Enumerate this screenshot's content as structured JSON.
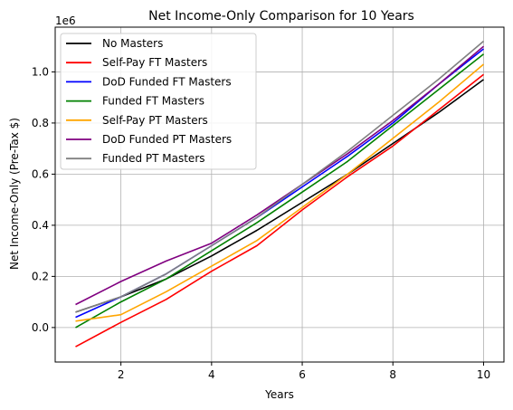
{
  "chart_data": {
    "type": "line",
    "title": "Net Income-Only Comparison for 10 Years",
    "xlabel": "Years",
    "ylabel": "Net Income-Only (Pre-Tax $)",
    "y_offset_label": "1e6",
    "xlim": [
      0.55,
      10.45
    ],
    "ylim": [
      -0.135,
      1.175
    ],
    "x_ticks": [
      2,
      4,
      6,
      8,
      10
    ],
    "x_tick_labels": [
      "2",
      "4",
      "6",
      "8",
      "10"
    ],
    "y_ticks": [
      0.0,
      0.2,
      0.4,
      0.6,
      0.8,
      1.0
    ],
    "y_tick_labels": [
      "0.0",
      "0.2",
      "0.4",
      "0.6",
      "0.8",
      "1.0"
    ],
    "grid": true,
    "legend_position": "top-left",
    "x": [
      1,
      2,
      3,
      4,
      5,
      6,
      7,
      8,
      9,
      10
    ],
    "series": [
      {
        "name": "No Masters",
        "color": "#000000",
        "values": [
          0.06,
          0.12,
          0.19,
          0.28,
          0.38,
          0.49,
          0.6,
          0.72,
          0.84,
          0.97
        ]
      },
      {
        "name": "Self-Pay FT Masters",
        "color": "#ff0000",
        "values": [
          -0.075,
          0.02,
          0.11,
          0.22,
          0.32,
          0.46,
          0.59,
          0.71,
          0.85,
          0.99
        ]
      },
      {
        "name": "DoD Funded FT Masters",
        "color": "#0000ff",
        "values": [
          0.04,
          0.12,
          0.21,
          0.32,
          0.43,
          0.55,
          0.67,
          0.8,
          0.95,
          1.09
        ]
      },
      {
        "name": "Funded FT Masters",
        "color": "#008000",
        "values": [
          0.0,
          0.1,
          0.19,
          0.3,
          0.41,
          0.53,
          0.65,
          0.79,
          0.93,
          1.07
        ]
      },
      {
        "name": "Self-Pay PT Masters",
        "color": "#ffa500",
        "values": [
          0.025,
          0.05,
          0.14,
          0.24,
          0.34,
          0.47,
          0.6,
          0.74,
          0.88,
          1.03
        ]
      },
      {
        "name": "DoD Funded PT Masters",
        "color": "#800080",
        "values": [
          0.09,
          0.18,
          0.26,
          0.33,
          0.44,
          0.56,
          0.68,
          0.81,
          0.95,
          1.1
        ]
      },
      {
        "name": "Funded PT Masters",
        "color": "#808080",
        "values": [
          0.06,
          0.12,
          0.21,
          0.32,
          0.43,
          0.56,
          0.69,
          0.83,
          0.97,
          1.12
        ]
      }
    ]
  }
}
